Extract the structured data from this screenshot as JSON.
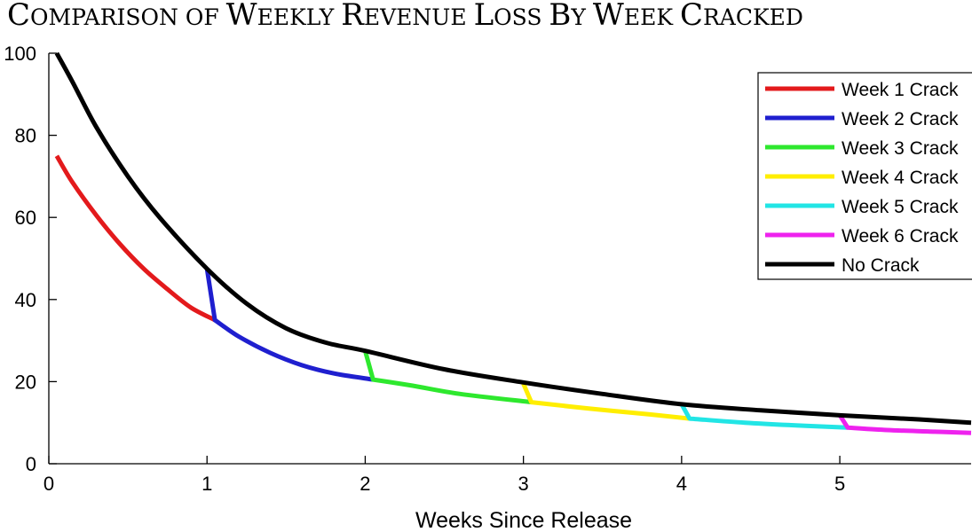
{
  "chart_data": {
    "type": "line",
    "title": "Comparison of Weekly Revenue Loss By Week Cracked",
    "xlabel": "Weeks Since Release",
    "ylabel": "",
    "xlim": [
      0,
      5.83
    ],
    "ylim": [
      0,
      100
    ],
    "xticks": [
      0,
      1,
      2,
      3,
      4,
      5
    ],
    "yticks": [
      0,
      20,
      40,
      60,
      80,
      100
    ],
    "grid": false,
    "legend_position": "top-right",
    "series": [
      {
        "name": "Week 1 Crack",
        "color": "#e31a1c",
        "x": [
          0.05,
          0.15,
          0.3,
          0.45,
          0.6,
          0.75,
          0.9,
          1.05
        ],
        "y": [
          75,
          68.5,
          60.5,
          53.5,
          47.5,
          42.5,
          38,
          35
        ]
      },
      {
        "name": "Week 2 Crack",
        "color": "#1f1fcf",
        "x": [
          1.0,
          1.05,
          1.2,
          1.4,
          1.6,
          1.8,
          2.05
        ],
        "y": [
          47.5,
          35,
          31,
          27,
          24,
          22,
          20.5
        ]
      },
      {
        "name": "Week 3 Crack",
        "color": "#2ee82e",
        "x": [
          2.0,
          2.05,
          2.3,
          2.6,
          3.05
        ],
        "y": [
          27.5,
          20.5,
          19,
          17,
          15
        ]
      },
      {
        "name": "Week 4 Crack",
        "color": "#ffee00",
        "x": [
          3.0,
          3.05,
          3.4,
          3.8,
          4.05
        ],
        "y": [
          19.5,
          15,
          13.5,
          12,
          11
        ]
      },
      {
        "name": "Week 5 Crack",
        "color": "#22e5e5",
        "x": [
          4.0,
          4.05,
          4.4,
          4.8,
          5.05
        ],
        "y": [
          14.5,
          11,
          10,
          9.2,
          8.8
        ]
      },
      {
        "name": "Week 6 Crack",
        "color": "#ee22ee",
        "x": [
          5.0,
          5.05,
          5.3,
          5.6,
          5.83
        ],
        "y": [
          11.8,
          8.8,
          8.2,
          7.8,
          7.5
        ]
      },
      {
        "name": "No Crack",
        "color": "#000000",
        "x": [
          0.05,
          0.15,
          0.3,
          0.5,
          0.7,
          1.0,
          1.25,
          1.5,
          1.75,
          2.0,
          2.5,
          3.0,
          3.5,
          4.0,
          4.5,
          5.0,
          5.5,
          5.83
        ],
        "y": [
          100,
          93,
          82,
          70,
          60,
          47.5,
          39,
          33,
          29.5,
          27.5,
          23,
          19.8,
          17,
          14.5,
          13,
          11.8,
          10.8,
          10
        ]
      }
    ]
  }
}
